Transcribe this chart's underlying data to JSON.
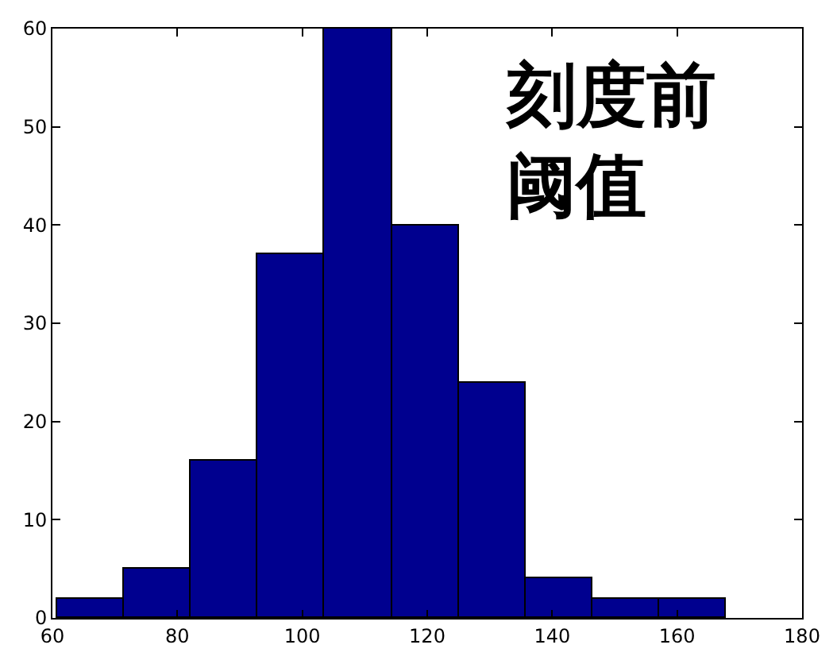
{
  "chart_data": {
    "type": "histogram",
    "bins": [
      60.8,
      71.5,
      82.2,
      92.9,
      103.6,
      114.3,
      125.0,
      135.7,
      146.4,
      157.1,
      167.8
    ],
    "values": [
      2,
      5,
      16,
      37,
      60,
      40,
      24,
      4,
      2,
      2
    ],
    "color": "#00008f",
    "xlim": [
      60,
      180
    ],
    "xticks": [
      60,
      80,
      100,
      120,
      140,
      160,
      180
    ],
    "ylim": [
      0,
      60
    ],
    "yticks": [
      0,
      10,
      20,
      30,
      40,
      50,
      60
    ],
    "annotations": [
      "刻度前阈值"
    ]
  }
}
